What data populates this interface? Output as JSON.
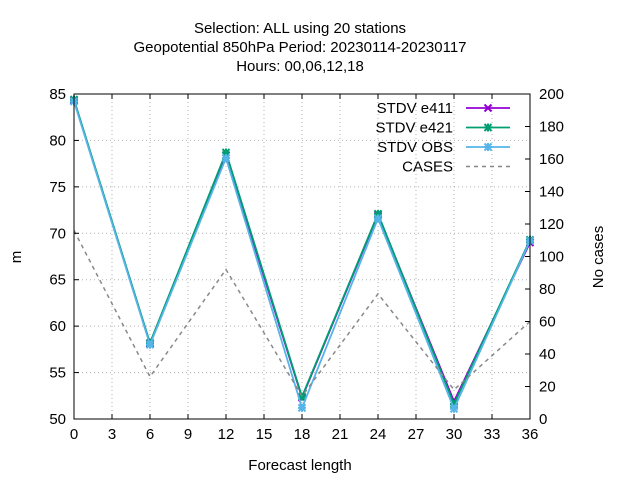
{
  "chart_data": {
    "type": "line",
    "title_lines": [
      "Selection: ALL using    20 stations",
      "Geopotential 850hPa   Period: 20230114-20230117",
      "Hours:  00,06,12,18"
    ],
    "xlabel": "Forecast length",
    "ylabel": "m",
    "y2label": "No cases",
    "xlim": [
      0,
      36
    ],
    "ylim": [
      50,
      85
    ],
    "y2lim": [
      0,
      200
    ],
    "xticks": [
      0,
      3,
      6,
      9,
      12,
      15,
      18,
      21,
      24,
      27,
      30,
      33,
      36
    ],
    "yticks": [
      50,
      55,
      60,
      65,
      70,
      75,
      80,
      85
    ],
    "y2ticks": [
      0,
      20,
      40,
      60,
      80,
      100,
      120,
      140,
      160,
      180,
      200
    ],
    "grid": true,
    "legend_position": "top-right",
    "x": [
      0,
      6,
      12,
      18,
      24,
      30,
      36
    ],
    "series": [
      {
        "name": "STDV e411",
        "axis": "left",
        "color": "#9400d3",
        "marker": "x",
        "values": [
          84.3,
          58.1,
          78.4,
          52.3,
          72.0,
          51.9,
          69.0
        ]
      },
      {
        "name": "STDV e421",
        "axis": "left",
        "color": "#009e73",
        "marker": "star",
        "values": [
          84.4,
          58.2,
          78.7,
          52.4,
          72.1,
          51.6,
          69.3
        ]
      },
      {
        "name": "STDV OBS",
        "axis": "left",
        "color": "#56b4e9",
        "marker": "star",
        "values": [
          84.2,
          58.0,
          78.1,
          51.2,
          71.6,
          51.1,
          69.2
        ]
      },
      {
        "name": "CASES",
        "axis": "right",
        "color": "#888888",
        "marker": "none",
        "dash": true,
        "values": [
          116,
          26,
          92,
          14,
          77,
          18,
          60
        ]
      }
    ]
  }
}
